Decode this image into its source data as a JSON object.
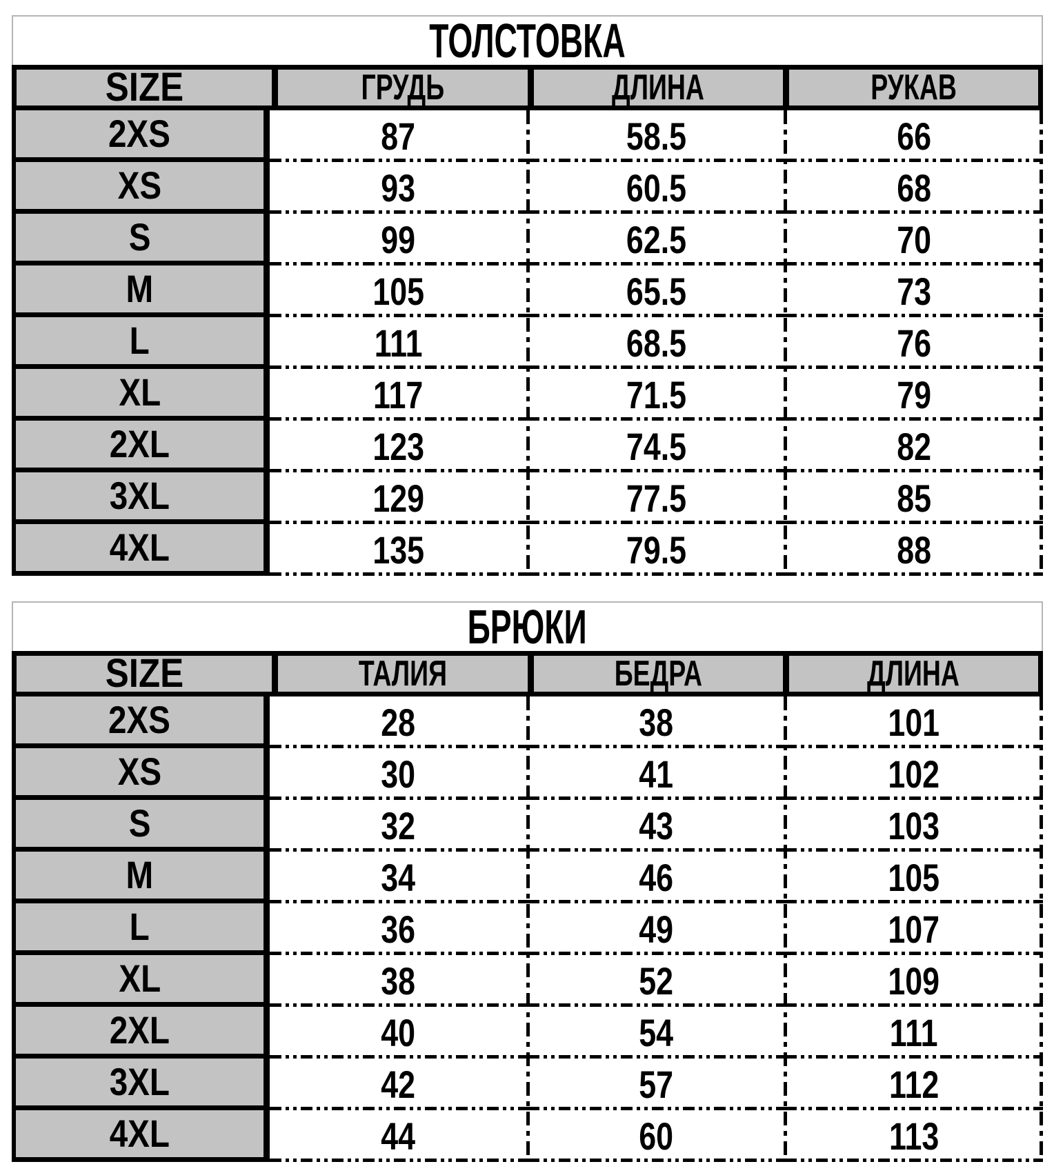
{
  "colors": {
    "header_bg": "#c3c3c3",
    "grid_black": "#000000",
    "title_border": "#b5b5b5",
    "text": "#000000",
    "page_bg": "#ffffff"
  },
  "tables": [
    {
      "title": "ТОЛСТОВКА",
      "columns": [
        "SIZE",
        "ГРУДЬ",
        "ДЛИНА",
        "РУКАВ"
      ],
      "rows": [
        {
          "size": "2XS",
          "values": [
            "87",
            "58.5",
            "66"
          ]
        },
        {
          "size": "XS",
          "values": [
            "93",
            "60.5",
            "68"
          ]
        },
        {
          "size": "S",
          "values": [
            "99",
            "62.5",
            "70"
          ]
        },
        {
          "size": "M",
          "values": [
            "105",
            "65.5",
            "73"
          ]
        },
        {
          "size": "L",
          "values": [
            "111",
            "68.5",
            "76"
          ]
        },
        {
          "size": "XL",
          "values": [
            "117",
            "71.5",
            "79"
          ]
        },
        {
          "size": "2XL",
          "values": [
            "123",
            "74.5",
            "82"
          ]
        },
        {
          "size": "3XL",
          "values": [
            "129",
            "77.5",
            "85"
          ]
        },
        {
          "size": "4XL",
          "values": [
            "135",
            "79.5",
            "88"
          ]
        }
      ]
    },
    {
      "title": "БРЮКИ",
      "columns": [
        "SIZE",
        "ТАЛИЯ",
        "БЕДРА",
        "ДЛИНА"
      ],
      "rows": [
        {
          "size": "2XS",
          "values": [
            "28",
            "38",
            "101"
          ]
        },
        {
          "size": "XS",
          "values": [
            "30",
            "41",
            "102"
          ]
        },
        {
          "size": "S",
          "values": [
            "32",
            "43",
            "103"
          ]
        },
        {
          "size": "M",
          "values": [
            "34",
            "46",
            "105"
          ]
        },
        {
          "size": "L",
          "values": [
            "36",
            "49",
            "107"
          ]
        },
        {
          "size": "XL",
          "values": [
            "38",
            "52",
            "109"
          ]
        },
        {
          "size": "2XL",
          "values": [
            "40",
            "54",
            "111"
          ]
        },
        {
          "size": "3XL",
          "values": [
            "42",
            "57",
            "112"
          ]
        },
        {
          "size": "4XL",
          "values": [
            "44",
            "60",
            "113"
          ]
        }
      ]
    }
  ]
}
